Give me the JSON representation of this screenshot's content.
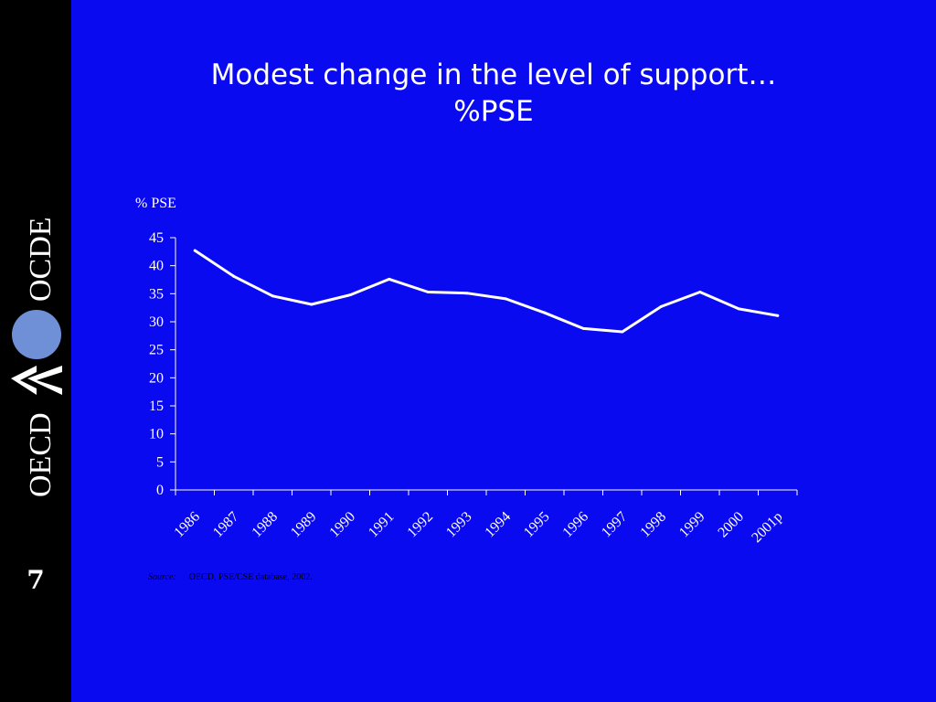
{
  "slide": {
    "title_line1": "Modest change in the level of support…",
    "title_line2": "%PSE",
    "number": "7",
    "logo_text_top": "OCDE",
    "logo_text_bottom": "OECD",
    "source_label": "Source:",
    "source_text": "OECD, PSE/CSE database, 2002."
  },
  "colors": {
    "background": "#0A0AF0",
    "sidebar": "#000000",
    "text": "#FFFFFF",
    "logo_circle": "#6F8FD6"
  },
  "chart_data": {
    "type": "line",
    "title": "",
    "ylabel": "% PSE",
    "xlabel": "",
    "ylim": [
      0,
      45
    ],
    "yticks": [
      0,
      5,
      10,
      15,
      20,
      25,
      30,
      35,
      40,
      45
    ],
    "grid": false,
    "legend": "none",
    "categories": [
      "1986",
      "1987",
      "1988",
      "1989",
      "1990",
      "1991",
      "1992",
      "1993",
      "1994",
      "1995",
      "1996",
      "1997",
      "1998",
      "1999",
      "2000",
      "2001p"
    ],
    "series": [
      {
        "values": [
          42.7,
          38.1,
          34.6,
          33.1,
          34.8,
          37.6,
          35.3,
          35.1,
          34.1,
          31.6,
          28.8,
          28.2,
          32.7,
          35.3,
          32.3,
          31.1
        ]
      }
    ]
  }
}
